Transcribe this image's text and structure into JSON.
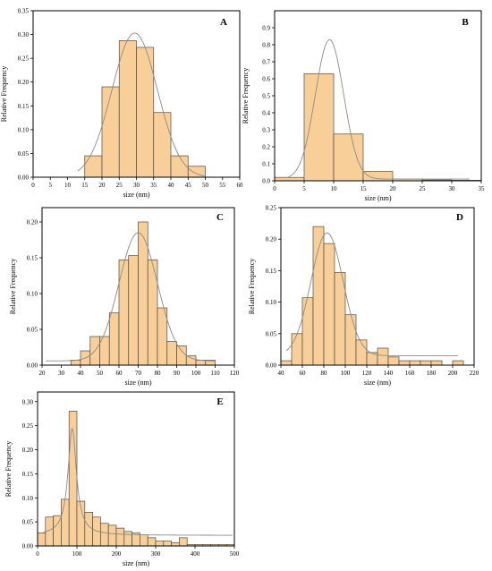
{
  "chart_data": [
    {
      "panel": "A",
      "type": "bar",
      "xlabel": "size (nm)",
      "ylabel": "Relative Frequency",
      "xlim": [
        0,
        60
      ],
      "ylim": [
        0,
        0.35
      ],
      "xticks": [
        "0",
        "5",
        "10",
        "15",
        "20",
        "25",
        "30",
        "35",
        "40",
        "45",
        "50",
        "55",
        "60"
      ],
      "yticks": [
        "0.00",
        "0.05",
        "0.10",
        "0.15",
        "0.20",
        "0.25",
        "0.30",
        "0.35"
      ],
      "bin_width": 5,
      "bins": [
        {
          "x": 17.5,
          "y": 0.045
        },
        {
          "x": 22.5,
          "y": 0.19
        },
        {
          "x": 27.5,
          "y": 0.287
        },
        {
          "x": 32.5,
          "y": 0.273
        },
        {
          "x": 37.5,
          "y": 0.136
        },
        {
          "x": 42.5,
          "y": 0.045
        },
        {
          "x": 47.5,
          "y": 0.023
        }
      ],
      "fit": {
        "mean": 29.5,
        "sd": 6.6,
        "peak": 0.303,
        "baseline": 0.0,
        "from": 13,
        "to": 50
      },
      "bar_color": "#f8cf98",
      "bar_edge": "#4a4a4a",
      "fit_color": "#8a8a8a"
    },
    {
      "panel": "B",
      "type": "bar",
      "xlabel": "size (nm)",
      "ylabel": "Relative Frequency",
      "xlim": [
        0,
        35
      ],
      "ylim": [
        0,
        1.0
      ],
      "xticks": [
        "0",
        "5",
        "10",
        "15",
        "20",
        "25",
        "30",
        "35"
      ],
      "yticks": [
        "0.0",
        "0.1",
        "0.2",
        "0.3",
        "0.4",
        "0.5",
        "0.6",
        "0.7",
        "0.8",
        "0.9"
      ],
      "bin_width": 5,
      "bins": [
        {
          "x": 2.5,
          "y": 0.02
        },
        {
          "x": 7.5,
          "y": 0.63
        },
        {
          "x": 12.5,
          "y": 0.275
        },
        {
          "x": 17.5,
          "y": 0.055
        },
        {
          "x": 22.5,
          "y": 0.01
        },
        {
          "x": 27.5,
          "y": 0.005
        },
        {
          "x": 32.5,
          "y": 0.003
        }
      ],
      "fit": {
        "mean": 9.3,
        "sd": 2.4,
        "peak": 0.83,
        "baseline": 0.01,
        "from": 2,
        "to": 33
      },
      "bar_color": "#f8cf98",
      "bar_edge": "#4a4a4a",
      "fit_color": "#8a8a8a"
    },
    {
      "panel": "C",
      "type": "bar",
      "xlabel": "size (nm)",
      "ylabel": "Relative Frequency",
      "xlim": [
        20,
        120
      ],
      "ylim": [
        0,
        0.22
      ],
      "xticks": [
        "20",
        "30",
        "40",
        "50",
        "60",
        "70",
        "80",
        "90",
        "100",
        "110",
        "120"
      ],
      "yticks": [
        "0.00",
        "0.05",
        "0.10",
        "0.15",
        "0.20"
      ],
      "bin_width": 5,
      "bins": [
        {
          "x": 37.5,
          "y": 0.007
        },
        {
          "x": 42.5,
          "y": 0.02
        },
        {
          "x": 47.5,
          "y": 0.04
        },
        {
          "x": 52.5,
          "y": 0.04
        },
        {
          "x": 57.5,
          "y": 0.073
        },
        {
          "x": 62.5,
          "y": 0.147
        },
        {
          "x": 67.5,
          "y": 0.153
        },
        {
          "x": 72.5,
          "y": 0.2
        },
        {
          "x": 77.5,
          "y": 0.147
        },
        {
          "x": 82.5,
          "y": 0.08
        },
        {
          "x": 87.5,
          "y": 0.033
        },
        {
          "x": 92.5,
          "y": 0.027
        },
        {
          "x": 97.5,
          "y": 0.013
        },
        {
          "x": 102.5,
          "y": 0.007
        },
        {
          "x": 107.5,
          "y": 0.007
        }
      ],
      "fit": {
        "mean": 70,
        "sd": 10,
        "peak": 0.185,
        "baseline": 0.006,
        "from": 22,
        "to": 110
      },
      "bar_color": "#f8cf98",
      "bar_edge": "#4a4a4a",
      "fit_color": "#8a8a8a"
    },
    {
      "panel": "D",
      "type": "bar",
      "xlabel": "size (nm)",
      "ylabel": "Relative Frequency",
      "xlim": [
        40,
        220
      ],
      "ylim": [
        0,
        0.25
      ],
      "xticks": [
        "40",
        "60",
        "80",
        "100",
        "120",
        "140",
        "160",
        "180",
        "200",
        "220"
      ],
      "yticks": [
        "0.00",
        "0.05",
        "0.10",
        "0.15",
        "0.20",
        "0.25"
      ],
      "bin_width": 10,
      "bins": [
        {
          "x": 45,
          "y": 0.007
        },
        {
          "x": 55,
          "y": 0.05
        },
        {
          "x": 65,
          "y": 0.107
        },
        {
          "x": 75,
          "y": 0.22
        },
        {
          "x": 85,
          "y": 0.193
        },
        {
          "x": 95,
          "y": 0.147
        },
        {
          "x": 105,
          "y": 0.08
        },
        {
          "x": 115,
          "y": 0.04
        },
        {
          "x": 125,
          "y": 0.02
        },
        {
          "x": 135,
          "y": 0.027
        },
        {
          "x": 145,
          "y": 0.013
        },
        {
          "x": 155,
          "y": 0.007
        },
        {
          "x": 165,
          "y": 0.007
        },
        {
          "x": 175,
          "y": 0.007
        },
        {
          "x": 185,
          "y": 0.007
        },
        {
          "x": 205,
          "y": 0.007
        }
      ],
      "fit": {
        "mean": 83,
        "sd": 15,
        "peak": 0.21,
        "baseline": 0.015,
        "from": 45,
        "to": 205
      },
      "bar_color": "#f8cf98",
      "bar_edge": "#4a4a4a",
      "fit_color": "#8a8a8a"
    },
    {
      "panel": "E",
      "type": "bar",
      "xlabel": "size (nm)",
      "ylabel": "Relative Frequency",
      "xlim": [
        0,
        500
      ],
      "ylim": [
        0,
        0.32
      ],
      "xticks": [
        "0",
        "100",
        "200",
        "300",
        "400",
        "500"
      ],
      "yticks": [
        "0.00",
        "0.05",
        "0.10",
        "0.15",
        "0.20",
        "0.25",
        "0.30"
      ],
      "bin_width": 20,
      "bins": [
        {
          "x": 10,
          "y": 0.027
        },
        {
          "x": 30,
          "y": 0.06
        },
        {
          "x": 50,
          "y": 0.063
        },
        {
          "x": 70,
          "y": 0.097
        },
        {
          "x": 90,
          "y": 0.28
        },
        {
          "x": 110,
          "y": 0.093
        },
        {
          "x": 130,
          "y": 0.07
        },
        {
          "x": 150,
          "y": 0.06
        },
        {
          "x": 170,
          "y": 0.047
        },
        {
          "x": 190,
          "y": 0.043
        },
        {
          "x": 210,
          "y": 0.037
        },
        {
          "x": 230,
          "y": 0.03
        },
        {
          "x": 250,
          "y": 0.027
        },
        {
          "x": 270,
          "y": 0.023
        },
        {
          "x": 290,
          "y": 0.017
        },
        {
          "x": 310,
          "y": 0.01
        },
        {
          "x": 330,
          "y": 0.01
        },
        {
          "x": 350,
          "y": 0.007
        },
        {
          "x": 370,
          "y": 0.017
        },
        {
          "x": 390,
          "y": 0.003
        },
        {
          "x": 410,
          "y": 0.003
        },
        {
          "x": 430,
          "y": 0.003
        },
        {
          "x": 450,
          "y": 0.003
        },
        {
          "x": 470,
          "y": 0.003
        },
        {
          "x": 490,
          "y": 0.003
        }
      ],
      "fit": {
        "type": "lorentz",
        "center": 88,
        "hwhm": 13,
        "peak": 0.245,
        "baseline": 0.022,
        "from": 15,
        "to": 495
      },
      "bar_color": "#f8cf98",
      "bar_edge": "#4a4a4a",
      "fit_color": "#8a8a8a"
    }
  ]
}
